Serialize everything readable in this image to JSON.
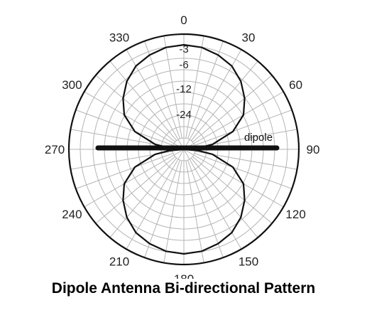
{
  "chart_data": {
    "type": "polar-line",
    "title": "Dipole Antenna Bi-directional Pattern",
    "angular_axis": {
      "unit": "degrees",
      "direction": "clockwise",
      "zero_at": "top",
      "ticks": [
        0,
        30,
        60,
        90,
        120,
        150,
        180,
        210,
        240,
        270,
        300,
        330
      ],
      "tick_labels": [
        "0",
        "30",
        "60",
        "90",
        "120",
        "150",
        "180",
        "210",
        "240",
        "270",
        "300",
        "330"
      ]
    },
    "radial_axis": {
      "unit": "dB",
      "ticks": [
        -3,
        -6,
        -12,
        -24
      ],
      "tick_labels": [
        "-3",
        "-6",
        "-12",
        "-24"
      ],
      "grid": true
    },
    "series": [
      {
        "label": "",
        "color": "#111111",
        "description": "figure-eight pattern, nulls at 90 and 270",
        "theta": [
          0,
          10,
          20,
          30,
          40,
          50,
          60,
          70,
          80,
          85,
          90,
          95,
          100,
          110,
          120,
          130,
          140,
          150,
          160,
          170,
          180,
          190,
          200,
          210,
          220,
          230,
          240,
          250,
          260,
          265,
          270,
          275,
          280,
          290,
          300,
          310,
          320,
          330,
          340,
          350,
          360
        ],
        "r_normalized": [
          1.0,
          0.99,
          0.96,
          0.92,
          0.85,
          0.76,
          0.66,
          0.5,
          0.28,
          0.14,
          0.0,
          0.14,
          0.28,
          0.5,
          0.66,
          0.76,
          0.85,
          0.92,
          0.96,
          0.99,
          1.0,
          0.99,
          0.96,
          0.92,
          0.85,
          0.76,
          0.66,
          0.5,
          0.28,
          0.14,
          0.0,
          0.14,
          0.28,
          0.5,
          0.66,
          0.76,
          0.85,
          0.92,
          0.96,
          0.99,
          1.0
        ]
      }
    ],
    "annotations": [
      {
        "text": "dipole",
        "element": "horizontal bar along 90-270 axis",
        "color": "#111111"
      }
    ],
    "legend": "none"
  }
}
